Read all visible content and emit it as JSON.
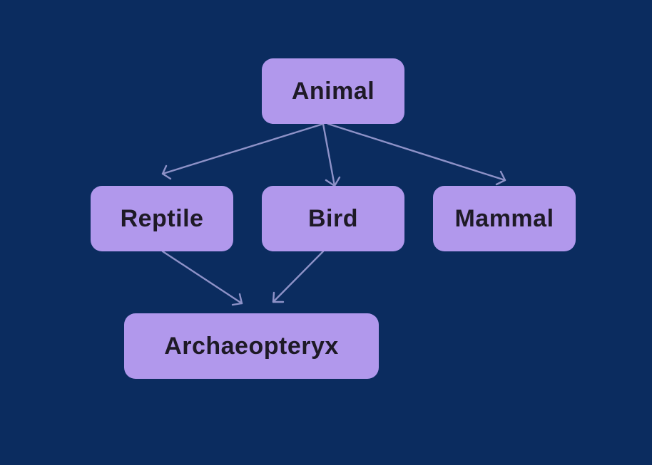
{
  "diagram": {
    "nodes": {
      "animal": "Animal",
      "reptile": "Reptile",
      "bird": "Bird",
      "mammal": "Mammal",
      "archaeopteryx": "Archaeopteryx"
    },
    "edges": [
      {
        "from": "Animal",
        "to": "Reptile"
      },
      {
        "from": "Animal",
        "to": "Bird"
      },
      {
        "from": "Animal",
        "to": "Mammal"
      },
      {
        "from": "Reptile",
        "to": "Archaeopteryx"
      },
      {
        "from": "Bird",
        "to": "Archaeopteryx"
      }
    ],
    "colors": {
      "background": "#0b2c5f",
      "node_fill": "#b198ec",
      "node_text": "#1e1a26",
      "edge": "#8e92c8"
    }
  }
}
